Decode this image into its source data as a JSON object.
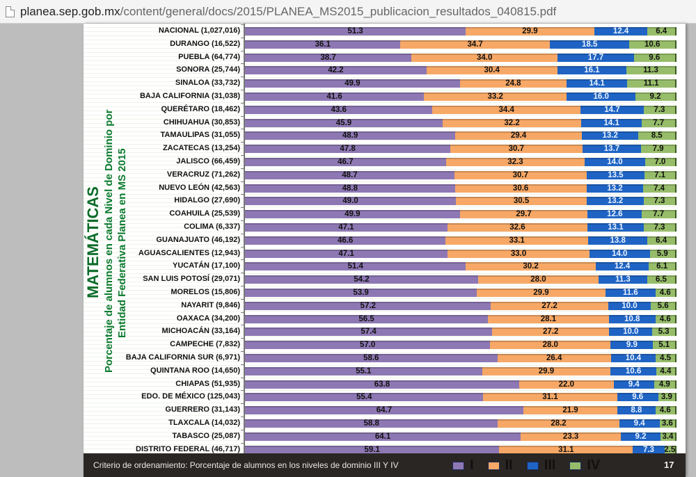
{
  "browser": {
    "url_host": "planea.sep.gob.mx",
    "url_path": "/content/general/docs/2015/PLANEA_MS2015_publicacion_resultados_040815.pdf",
    "page_icon": "document-icon"
  },
  "document": {
    "vertical_title": "MATEMÁTICAS",
    "vertical_subtitle_line1": "Porcentaje de alumnos en cada Nivel de Dominio por",
    "vertical_subtitle_line2": "Entidad Federativa Planea  en MS 2015",
    "footer_criterion": "Criterio de ordenamiento:  Porcentaje de alumnos en  los niveles  de dominio III Y IV",
    "page_number": "17"
  },
  "colors": {
    "level_I": "#8e78b4",
    "level_II": "#f7a866",
    "level_III": "#1f64c4",
    "level_IV": "#97bd6a",
    "title_green": "#0b7a2e",
    "footer_bg": "#2a2624"
  },
  "chart_data": {
    "type": "bar",
    "orientation": "horizontal",
    "stacked": true,
    "title": "MATEMÁTICAS — Porcentaje de alumnos en cada Nivel de Dominio por Entidad Federativa Planea en MS 2015",
    "xlabel": "",
    "ylabel": "",
    "xlim": [
      0,
      100
    ],
    "grid": false,
    "legend_position": "bottom-right",
    "categories": [
      "NACIONAL (1,027,016)",
      "DURANGO (16,522)",
      "PUEBLA (64,774)",
      "SONORA (25,744)",
      "SINALOA (33,732)",
      "BAJA CALIFORNIA (31,038)",
      "QUERÉTARO (18,462)",
      "CHIHUAHUA (30,853)",
      "TAMAULIPAS (31,055)",
      "ZACATECAS (13,254)",
      "JALISCO (66,459)",
      "VERACRUZ (71,262)",
      "NUEVO LEÓN (42,563)",
      "HIDALGO (27,690)",
      "COAHUILA (25,539)",
      "COLIMA (6,337)",
      "GUANAJUATO (46,192)",
      "AGUASCALIENTES (12,943)",
      "YUCATÁN (17,100)",
      "SAN LUIS POTOSÍ (29,071)",
      "MORELOS (15,806)",
      "NAYARIT (9,846)",
      "OAXACA (34,200)",
      "MICHOACÁN (33,164)",
      "CAMPECHE (7,832)",
      "BAJA CALIFORNIA SUR (6,971)",
      "QUINTANA ROO (14,650)",
      "CHIAPAS (51,935)",
      "EDO. DE MÉXICO (125,043)",
      "GUERRERO (31,143)",
      "TLAXCALA (14,032)",
      "TABASCO (25,087)",
      "DISTRITO FEDERAL (46,717)"
    ],
    "series": [
      {
        "name": "I",
        "values": [
          51.3,
          36.1,
          38.7,
          42.2,
          49.9,
          41.6,
          43.6,
          45.9,
          48.9,
          47.8,
          46.7,
          48.7,
          48.8,
          49.0,
          49.9,
          47.1,
          46.6,
          47.1,
          51.4,
          54.2,
          53.9,
          57.2,
          56.5,
          57.4,
          57.0,
          58.6,
          55.1,
          63.8,
          55.4,
          64.7,
          58.8,
          64.1,
          59.1
        ]
      },
      {
        "name": "II",
        "values": [
          29.9,
          34.7,
          34.0,
          30.4,
          24.8,
          33.2,
          34.4,
          32.2,
          29.4,
          30.7,
          32.3,
          30.7,
          30.6,
          30.5,
          29.7,
          32.6,
          33.1,
          33.0,
          30.2,
          28.0,
          29.9,
          27.2,
          28.1,
          27.2,
          28.0,
          26.4,
          29.9,
          22.0,
          31.1,
          21.9,
          28.2,
          23.3,
          31.1
        ]
      },
      {
        "name": "III",
        "values": [
          12.4,
          18.5,
          17.7,
          16.1,
          14.1,
          16.0,
          14.7,
          14.1,
          13.2,
          13.7,
          14.0,
          13.5,
          13.2,
          13.2,
          12.6,
          13.1,
          13.8,
          14.0,
          12.4,
          11.3,
          11.6,
          10.0,
          10.8,
          10.0,
          9.9,
          10.4,
          10.6,
          9.4,
          9.6,
          8.8,
          9.4,
          9.2,
          7.3
        ]
      },
      {
        "name": "IV",
        "values": [
          6.4,
          10.6,
          9.6,
          11.3,
          11.1,
          9.2,
          7.3,
          7.7,
          8.5,
          7.9,
          7.0,
          7.1,
          7.4,
          7.3,
          7.7,
          7.3,
          6.4,
          5.9,
          6.1,
          6.5,
          4.6,
          5.6,
          4.6,
          5.3,
          5.1,
          4.5,
          4.4,
          4.9,
          3.9,
          4.6,
          3.6,
          3.4,
          2.5
        ]
      }
    ],
    "legend": [
      "I",
      "II",
      "III",
      "IV"
    ]
  }
}
